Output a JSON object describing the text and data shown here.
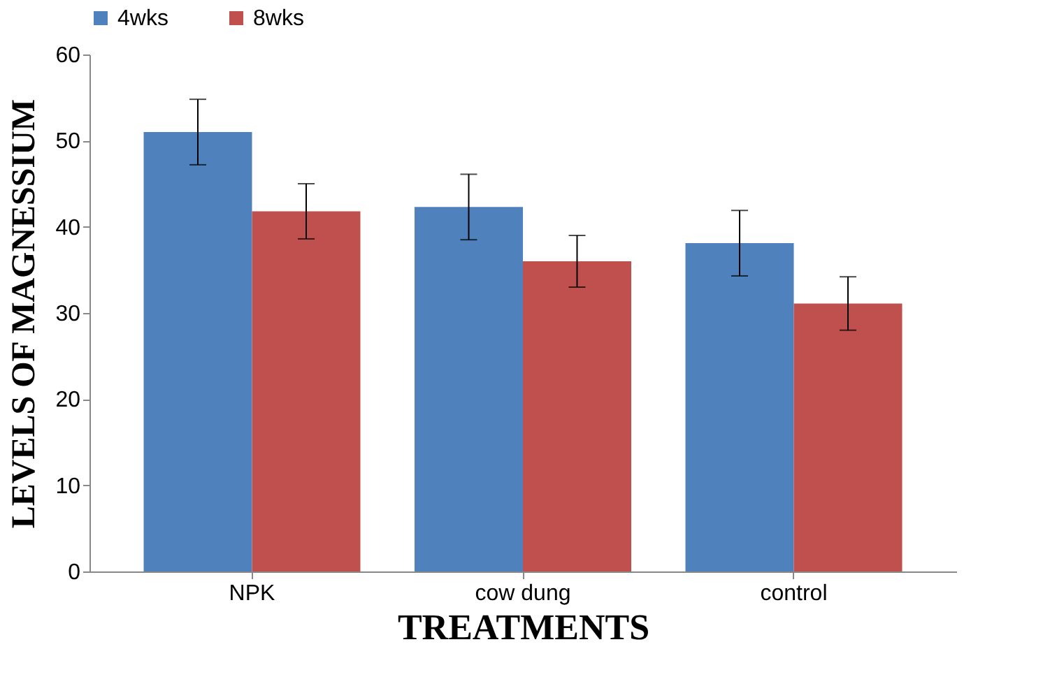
{
  "chart_data": {
    "type": "bar",
    "xlabel": "TREATMENTS",
    "ylabel": "LEVELS OF MAGNESSIUM",
    "categories": [
      "NPK",
      "cow dung",
      "control"
    ],
    "series": [
      {
        "name": "4wks",
        "color": "#4f81bd",
        "values": [
          51,
          42.3,
          38.1
        ],
        "errors": [
          3.8,
          3.8,
          3.8
        ]
      },
      {
        "name": "8wks",
        "color": "#c0504d",
        "values": [
          41.8,
          36,
          31.1
        ],
        "errors": [
          3.2,
          3,
          3.1
        ]
      }
    ],
    "ylim": [
      0,
      60
    ],
    "yticks": [
      0,
      10,
      20,
      30,
      40,
      50,
      60
    ],
    "grid": false,
    "legend": "top"
  }
}
